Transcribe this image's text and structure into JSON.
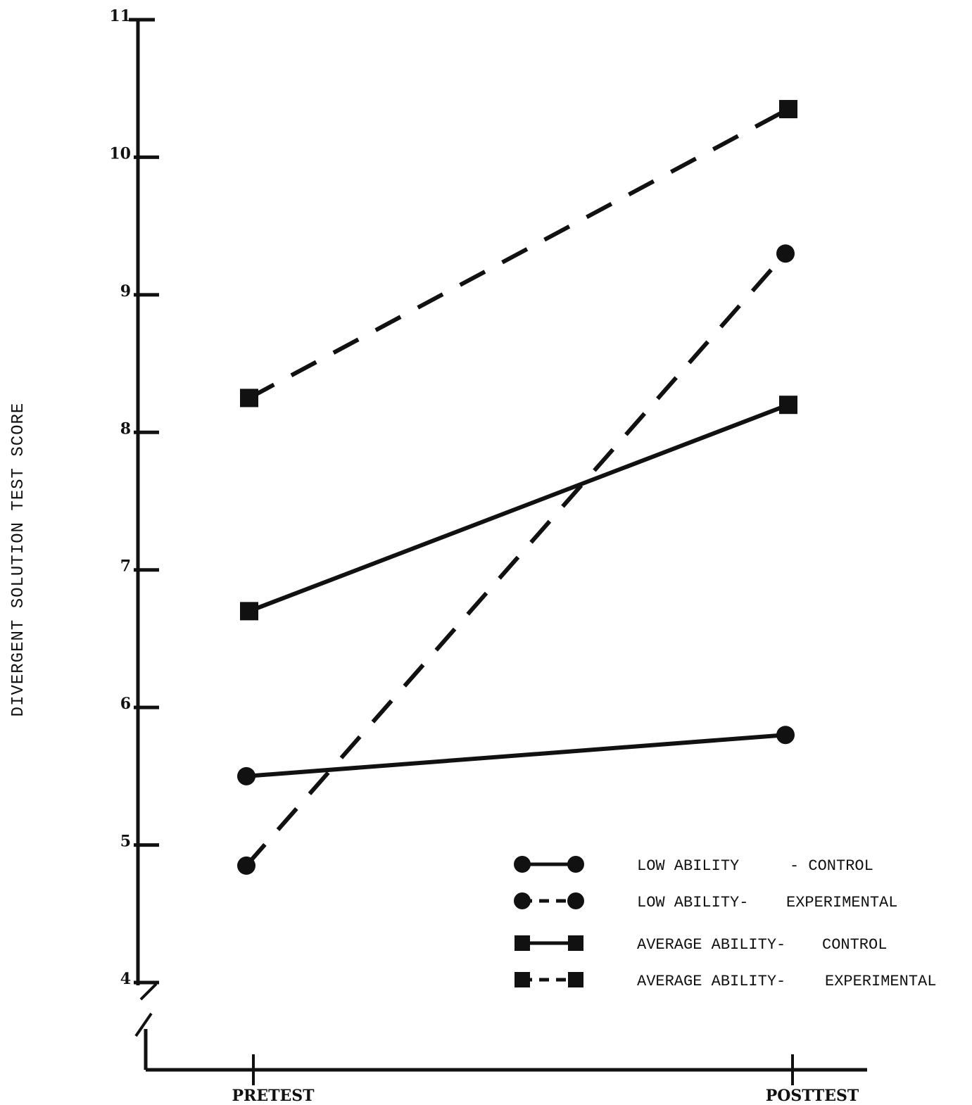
{
  "chart_data": {
    "type": "line",
    "x": [
      "PRETEST",
      "POSTTEST"
    ],
    "ylabel": "DIVERGENT SOLUTION TEST SCORE",
    "ylim": [
      4,
      11
    ],
    "yticks": [
      "4",
      "5",
      "6",
      "7",
      "8",
      "9",
      "10",
      "11"
    ],
    "y_axis_break": true,
    "legend_position": "bottom-right",
    "series": [
      {
        "name": "LOW ABILITY - CONTROL",
        "name_parts": [
          "LOW ABILITY",
          "- CONTROL"
        ],
        "marker": "circle",
        "line": "solid",
        "values": [
          5.5,
          5.8
        ]
      },
      {
        "name": "LOW ABILITY- EXPERIMENTAL",
        "name_parts": [
          "LOW ABILITY-",
          "EXPERIMENTAL"
        ],
        "marker": "circle",
        "line": "dashed",
        "values": [
          4.85,
          9.3
        ]
      },
      {
        "name": "AVERAGE ABILITY- CONTROL",
        "name_parts": [
          "AVERAGE ABILITY-",
          "CONTROL"
        ],
        "marker": "square",
        "line": "solid",
        "values": [
          6.7,
          8.2
        ]
      },
      {
        "name": "AVERAGE ABILITY- EXPERIMENTAL",
        "name_parts": [
          "AVERAGE ABILITY-",
          "EXPERIMENTAL"
        ],
        "marker": "square",
        "line": "dashed",
        "values": [
          8.25,
          10.35
        ]
      }
    ]
  }
}
